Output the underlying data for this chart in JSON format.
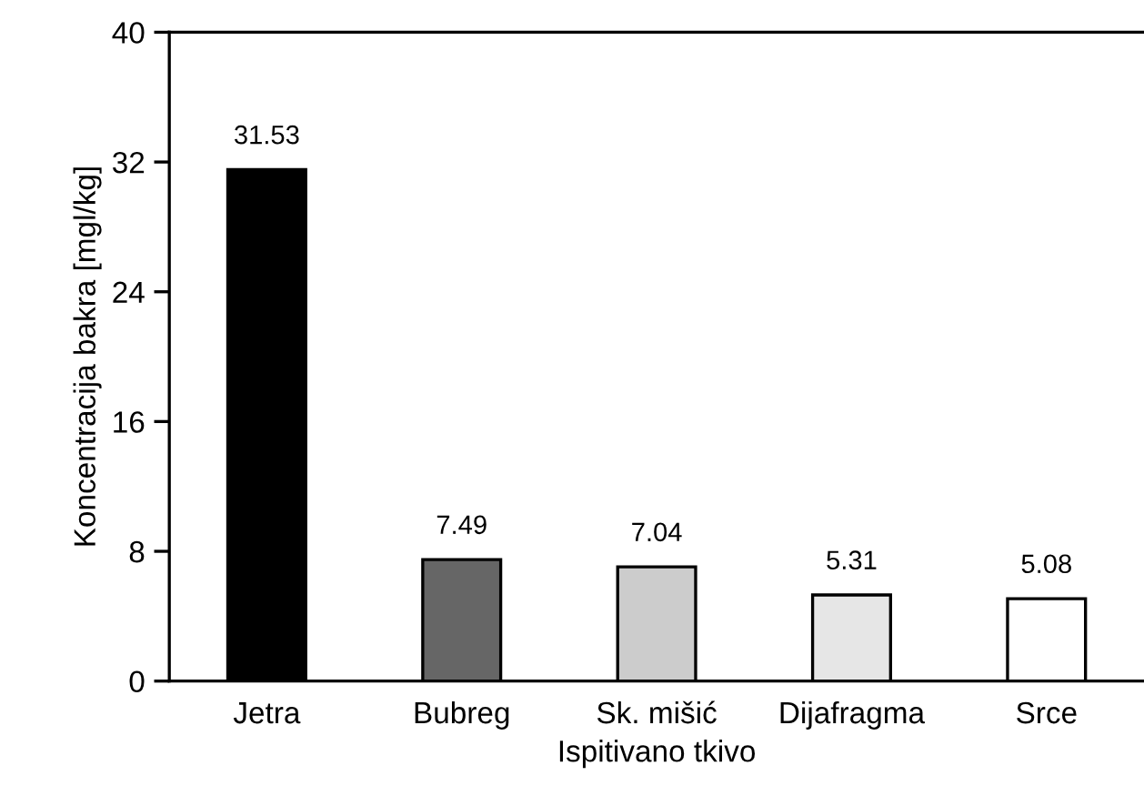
{
  "chart_data": {
    "type": "bar",
    "xlabel": "Ispitivano tkivo",
    "ylabel": "Koncentracija bakra [mgl/kg]",
    "categories": [
      "Jetra",
      "Bubreg",
      "Sk. mišić",
      "Dijafragma",
      "Srce"
    ],
    "values": [
      31.53,
      7.49,
      7.04,
      5.31,
      5.08
    ],
    "colors": [
      "#000000",
      "#666666",
      "#cccccc",
      "#e6e6e6",
      "#ffffff"
    ],
    "ylim": [
      0,
      40
    ],
    "yticks": [
      0,
      8,
      16,
      24,
      32,
      40
    ],
    "grid": false,
    "legend": false,
    "data_labels": true
  }
}
